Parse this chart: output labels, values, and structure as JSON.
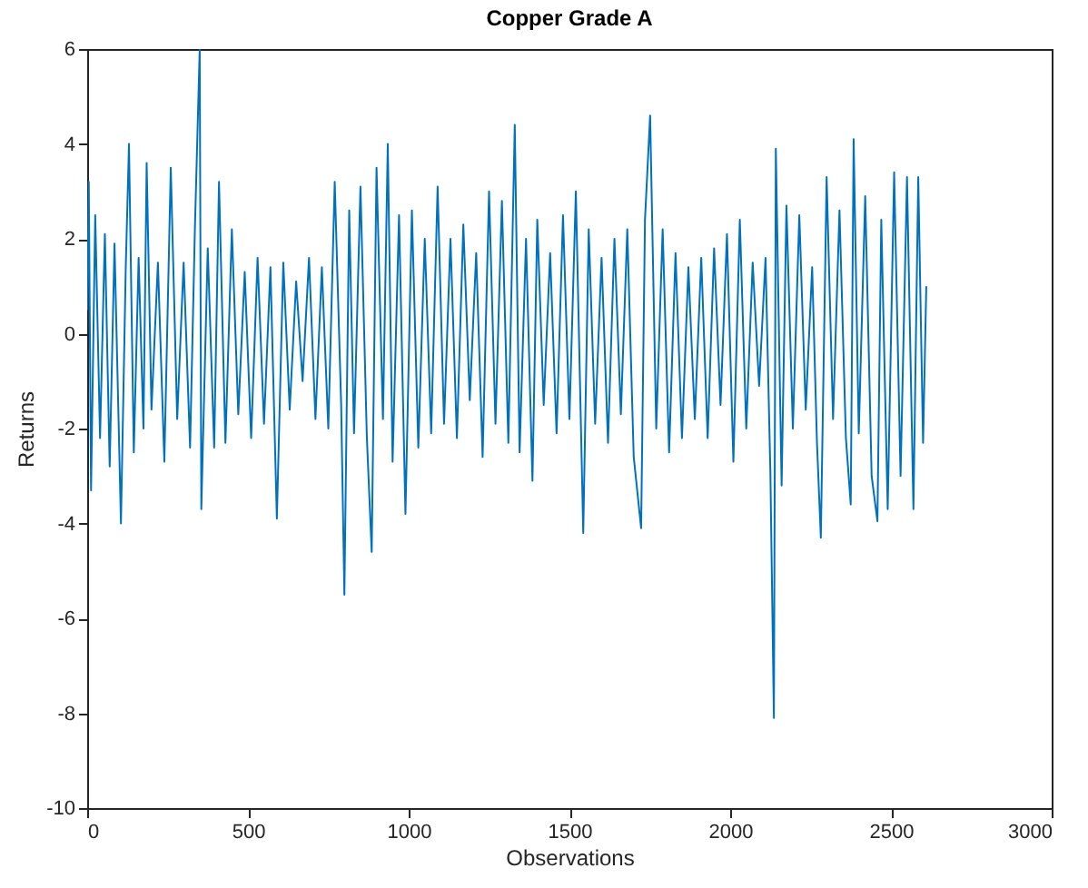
{
  "chart_data": {
    "type": "line",
    "title": "Copper Grade A",
    "xlabel": "Observations",
    "ylabel": "Returns",
    "xlim": [
      0,
      3000
    ],
    "xticks": [
      0,
      500,
      1000,
      1500,
      2000,
      2500,
      3000
    ],
    "ylim": [
      -10,
      6
    ],
    "yticks": [
      -10,
      -8,
      -6,
      -4,
      -2,
      0,
      2,
      4,
      6
    ],
    "x": [
      0,
      5,
      12,
      25,
      40,
      55,
      70,
      85,
      105,
      120,
      130,
      145,
      160,
      175,
      185,
      200,
      220,
      240,
      260,
      280,
      300,
      320,
      335,
      350,
      355,
      375,
      395,
      410,
      430,
      450,
      470,
      490,
      510,
      530,
      550,
      570,
      590,
      610,
      630,
      650,
      670,
      690,
      710,
      730,
      750,
      770,
      790,
      800,
      815,
      830,
      850,
      870,
      885,
      900,
      920,
      935,
      950,
      970,
      990,
      1010,
      1030,
      1050,
      1070,
      1090,
      1110,
      1130,
      1150,
      1170,
      1190,
      1210,
      1230,
      1250,
      1270,
      1290,
      1310,
      1330,
      1345,
      1365,
      1385,
      1400,
      1420,
      1440,
      1460,
      1480,
      1500,
      1520,
      1543,
      1560,
      1580,
      1600,
      1620,
      1640,
      1660,
      1680,
      1700,
      1723,
      1735,
      1751,
      1770,
      1790,
      1810,
      1830,
      1850,
      1870,
      1890,
      1910,
      1930,
      1950,
      1970,
      1990,
      2010,
      2030,
      2050,
      2070,
      2090,
      2110,
      2125,
      2136,
      2142,
      2160,
      2175,
      2195,
      2215,
      2235,
      2255,
      2270,
      2282,
      2300,
      2320,
      2340,
      2360,
      2375,
      2384,
      2400,
      2420,
      2440,
      2458,
      2470,
      2490,
      2510,
      2530,
      2550,
      2570,
      2585,
      2600,
      2610
    ],
    "series": [
      {
        "color": "#0072bd",
        "values": [
          0.5,
          3.2,
          -3.3,
          2.5,
          -2.2,
          2.1,
          -2.8,
          1.9,
          -4.0,
          1.4,
          4.0,
          -2.5,
          1.6,
          -2.0,
          3.6,
          -1.6,
          1.5,
          -2.7,
          3.5,
          -1.8,
          1.5,
          -2.4,
          2.2,
          6.0,
          -3.7,
          1.8,
          -2.4,
          3.2,
          -2.3,
          2.2,
          -1.7,
          1.3,
          -2.2,
          1.6,
          -1.9,
          1.4,
          -3.9,
          1.5,
          -1.6,
          1.1,
          -1.0,
          1.6,
          -1.8,
          1.4,
          -2.0,
          3.2,
          -1.5,
          -5.5,
          2.6,
          -2.1,
          3.1,
          -2.2,
          -4.6,
          3.5,
          -1.8,
          4.0,
          -2.7,
          2.5,
          -3.8,
          2.6,
          -2.4,
          2.0,
          -2.1,
          3.1,
          -1.9,
          2.0,
          -2.2,
          2.3,
          -1.4,
          1.7,
          -2.6,
          3.0,
          -1.9,
          2.8,
          -2.3,
          4.4,
          -2.5,
          2.0,
          -3.1,
          2.4,
          -1.5,
          1.7,
          -2.1,
          2.5,
          -1.8,
          3.0,
          -4.2,
          2.2,
          -1.9,
          1.6,
          -2.3,
          2.0,
          -1.7,
          2.2,
          -2.6,
          -4.1,
          2.4,
          4.6,
          -2.0,
          2.2,
          -2.5,
          1.7,
          -2.2,
          1.4,
          -1.8,
          1.6,
          -2.2,
          1.8,
          -1.5,
          2.1,
          -2.7,
          2.4,
          -2.0,
          1.5,
          -1.1,
          1.6,
          -2.9,
          -8.1,
          3.9,
          -3.2,
          2.7,
          -2.0,
          2.5,
          -1.6,
          1.4,
          -2.3,
          -4.3,
          3.3,
          -1.8,
          2.6,
          -2.2,
          -3.6,
          4.1,
          -2.1,
          2.9,
          -3.0,
          -3.95,
          2.4,
          -3.7,
          3.4,
          -3.0,
          3.3,
          -3.7,
          3.3,
          -2.3,
          1.0
        ]
      }
    ]
  }
}
